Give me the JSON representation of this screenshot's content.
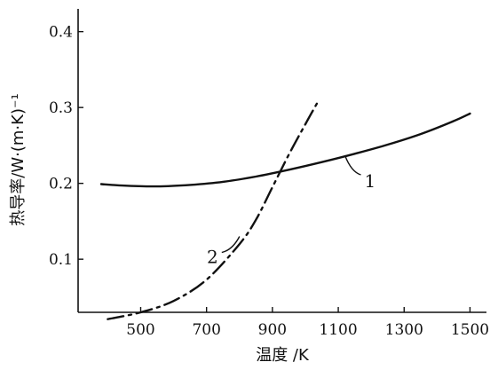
{
  "chart_data": {
    "type": "line",
    "xlabel": "温度 /K",
    "ylabel": "热导率/W·(m·K)⁻¹",
    "xlim": [
      310,
      1550
    ],
    "ylim": [
      0.03,
      0.43
    ],
    "x_ticks": [
      500,
      700,
      900,
      1100,
      1300,
      1500
    ],
    "x_tick_labels": [
      "500",
      "700",
      "900",
      "1100",
      "1300",
      "1500"
    ],
    "y_ticks": [
      0.1,
      0.2,
      0.3,
      0.4
    ],
    "y_tick_labels": [
      "0.1",
      "0.2",
      "0.3",
      "0.4"
    ],
    "grid": false,
    "legend": "none",
    "series": [
      {
        "label": "1",
        "style": "solid",
        "x": [
          380,
          450,
          550,
          650,
          750,
          850,
          950,
          1050,
          1150,
          1250,
          1350,
          1450,
          1500
        ],
        "y": [
          0.199,
          0.197,
          0.196,
          0.198,
          0.202,
          0.209,
          0.218,
          0.228,
          0.239,
          0.251,
          0.265,
          0.282,
          0.292
        ]
      },
      {
        "label": "2",
        "style": "dash-dot",
        "x": [
          400,
          500,
          600,
          700,
          800,
          850,
          900,
          950,
          1000,
          1040
        ],
        "y": [
          0.021,
          0.03,
          0.045,
          0.073,
          0.12,
          0.152,
          0.195,
          0.238,
          0.278,
          0.309
        ]
      }
    ],
    "annotations": [
      {
        "text": "1",
        "series": 0,
        "x": 1120,
        "y": 0.237
      },
      {
        "text": "2",
        "series": 1,
        "x": 800,
        "y": 0.13
      }
    ]
  }
}
